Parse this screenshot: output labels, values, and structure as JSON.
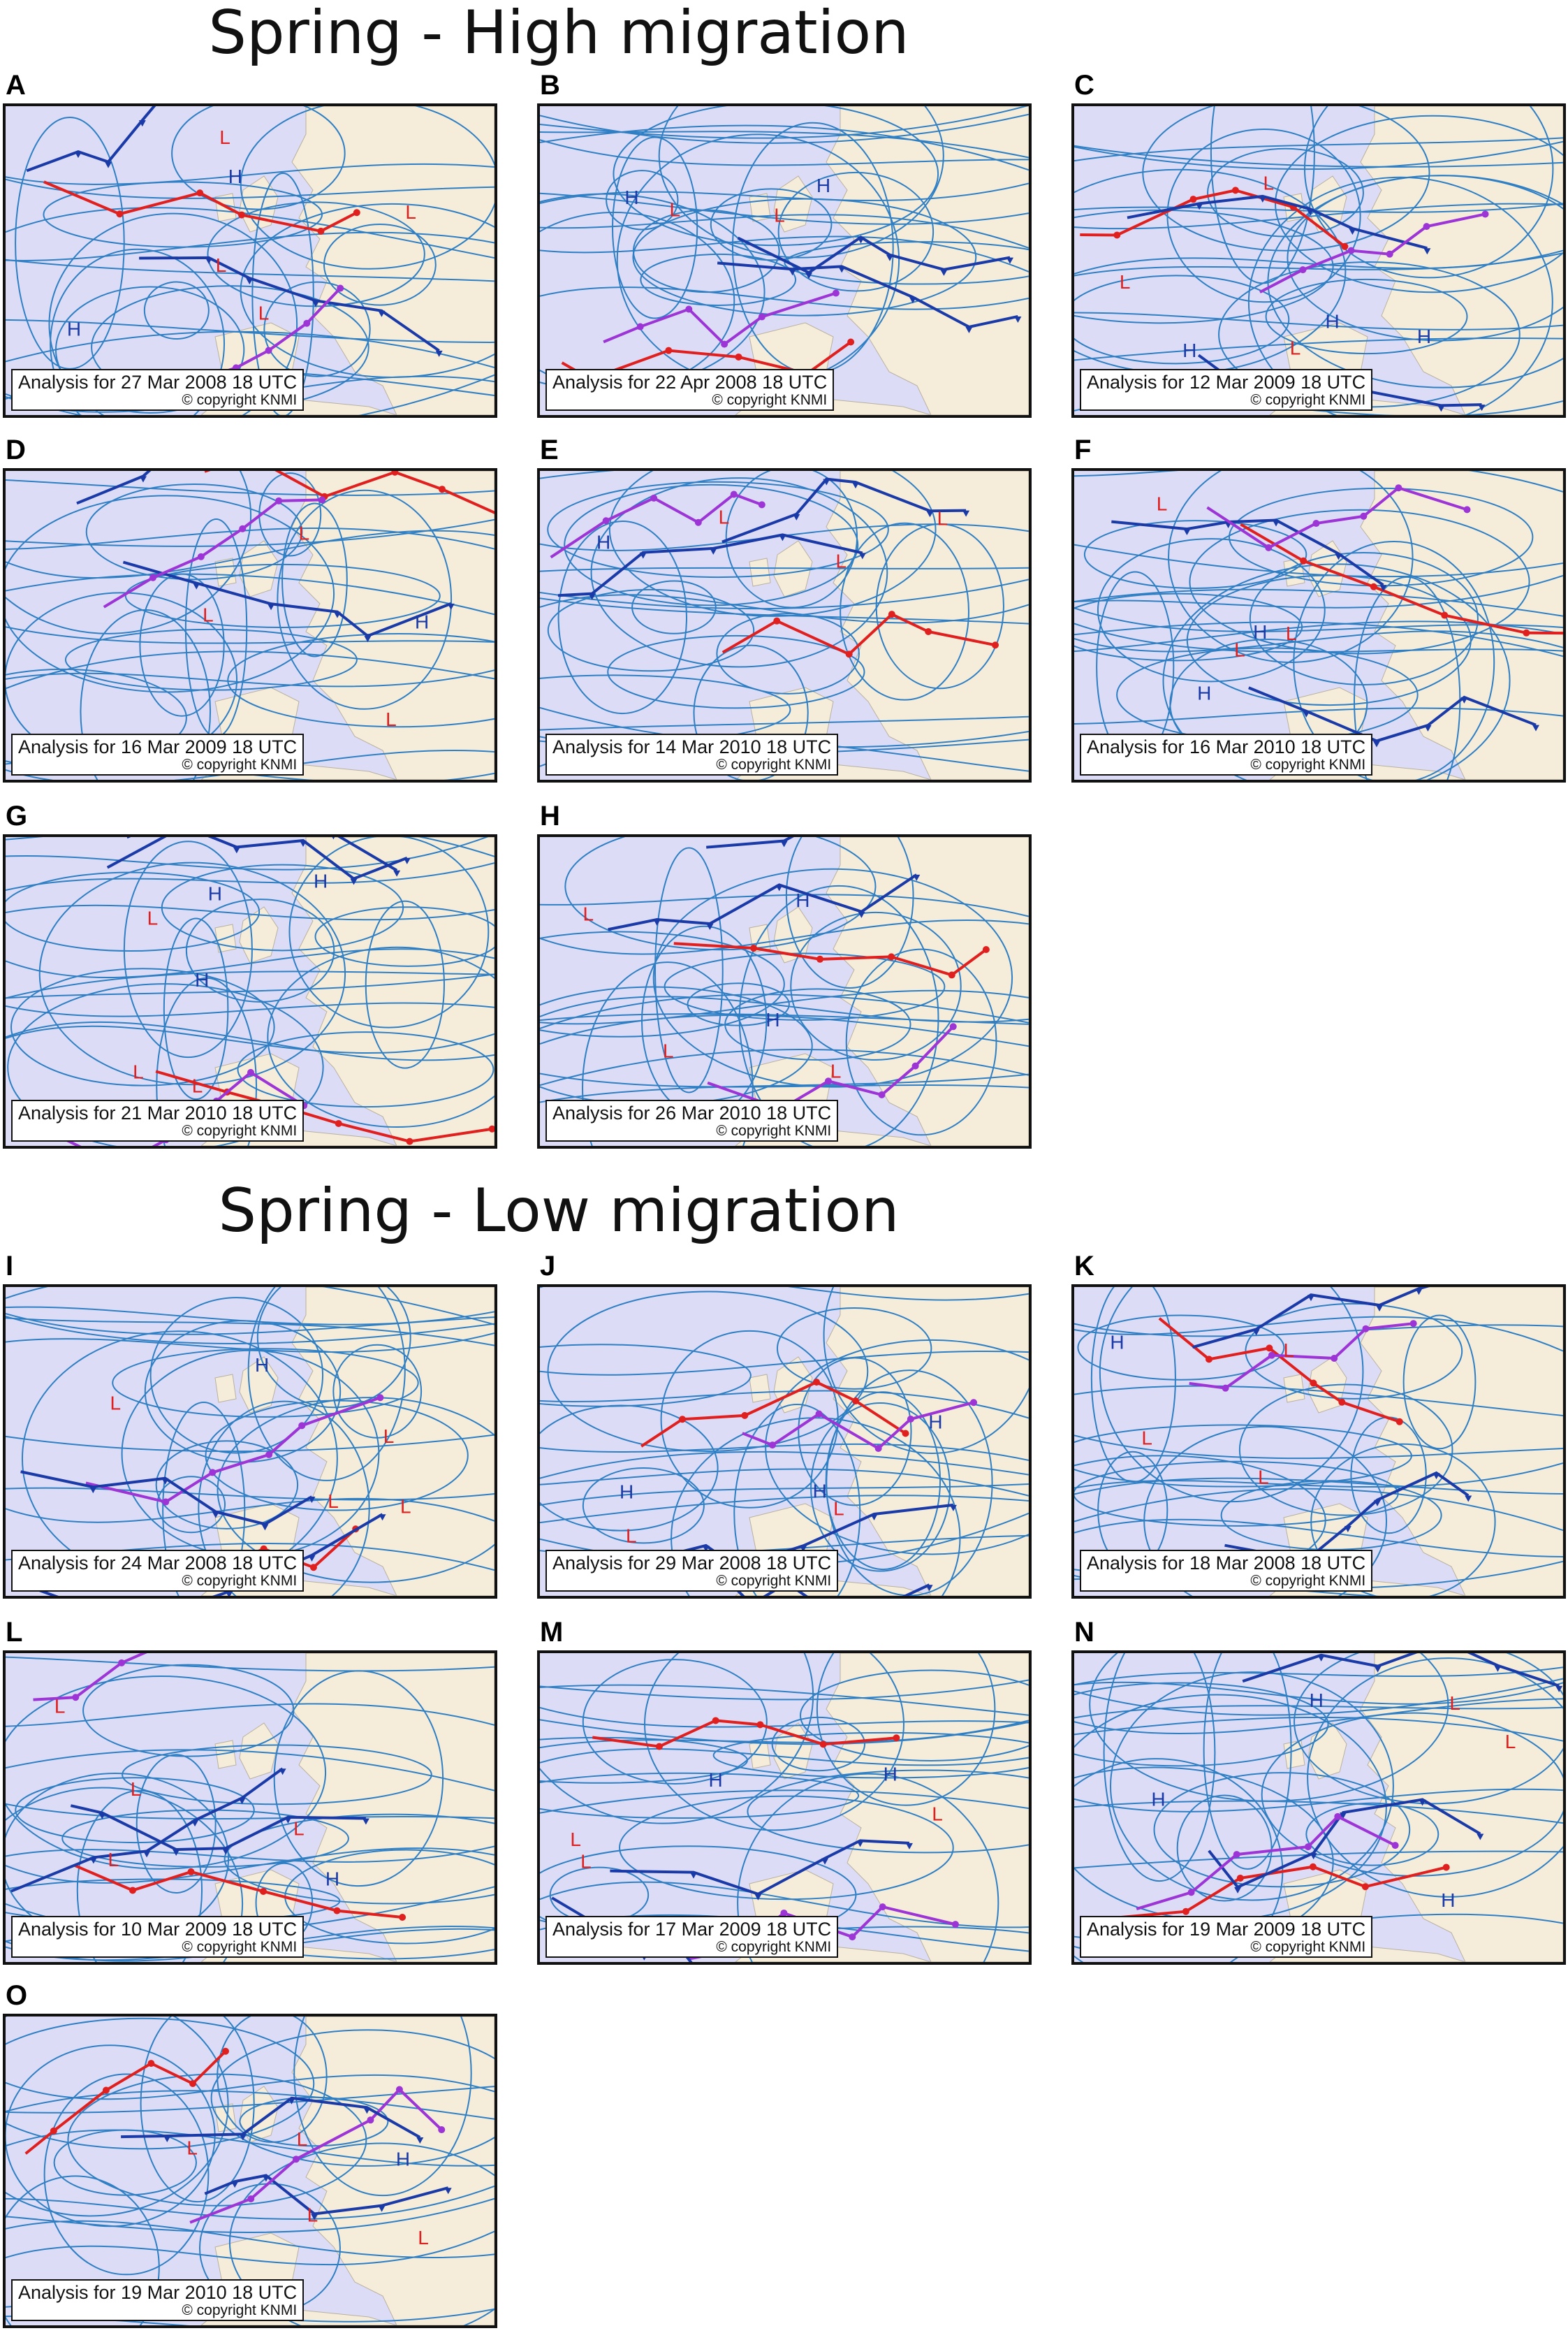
{
  "sections": {
    "high_title": "Spring - High  migration",
    "low_title": "Spring - Low migration"
  },
  "copyright": "© copyright KNMI",
  "colors": {
    "land": "#f5ecd9",
    "sea": "#dcdcf7",
    "isobar": "#2f7fc4",
    "warm": "#e0201f",
    "cold": "#1a3aa8",
    "occluded": "#9c34d6"
  },
  "panels": [
    {
      "letter": "A",
      "caption": "Analysis for 27 Mar 2008 18 UTC",
      "section": "high",
      "marks": [
        {
          "t": "L",
          "c": "red"
        },
        {
          "t": "L",
          "c": "red"
        },
        {
          "t": "L",
          "c": "red"
        },
        {
          "t": "L",
          "c": "red"
        },
        {
          "t": "H",
          "c": "blue"
        },
        {
          "t": "H",
          "c": "blue"
        }
      ]
    },
    {
      "letter": "B",
      "caption": "Analysis for 22 Apr 2008 18 UTC",
      "section": "high",
      "marks": [
        {
          "t": "L",
          "c": "red"
        },
        {
          "t": "L",
          "c": "red"
        },
        {
          "t": "H",
          "c": "blue"
        },
        {
          "t": "H",
          "c": "blue"
        }
      ]
    },
    {
      "letter": "C",
      "caption": "Analysis for 12 Mar 2009 18 UTC",
      "section": "high",
      "marks": [
        {
          "t": "L",
          "c": "red"
        },
        {
          "t": "L",
          "c": "red"
        },
        {
          "t": "L",
          "c": "red"
        },
        {
          "t": "H",
          "c": "blue"
        },
        {
          "t": "H",
          "c": "blue"
        },
        {
          "t": "H",
          "c": "blue"
        }
      ]
    },
    {
      "letter": "D",
      "caption": "Analysis for 16 Mar 2009 18 UTC",
      "section": "high",
      "marks": [
        {
          "t": "L",
          "c": "red"
        },
        {
          "t": "L",
          "c": "red"
        },
        {
          "t": "L",
          "c": "red"
        },
        {
          "t": "H",
          "c": "blue"
        }
      ]
    },
    {
      "letter": "E",
      "caption": "Analysis for 14 Mar 2010 18 UTC",
      "section": "high",
      "marks": [
        {
          "t": "L",
          "c": "red"
        },
        {
          "t": "L",
          "c": "red"
        },
        {
          "t": "L",
          "c": "red"
        },
        {
          "t": "H",
          "c": "blue"
        }
      ]
    },
    {
      "letter": "F",
      "caption": "Analysis for 16 Mar 2010 18 UTC",
      "section": "high",
      "marks": [
        {
          "t": "L",
          "c": "red"
        },
        {
          "t": "L",
          "c": "red"
        },
        {
          "t": "L",
          "c": "red"
        },
        {
          "t": "H",
          "c": "blue"
        },
        {
          "t": "H",
          "c": "blue"
        }
      ]
    },
    {
      "letter": "G",
      "caption": "Analysis for 21 Mar 2010 18 UTC",
      "section": "high",
      "marks": [
        {
          "t": "L",
          "c": "red"
        },
        {
          "t": "L",
          "c": "red"
        },
        {
          "t": "L",
          "c": "red"
        },
        {
          "t": "H",
          "c": "blue"
        },
        {
          "t": "H",
          "c": "blue"
        },
        {
          "t": "H",
          "c": "blue"
        }
      ]
    },
    {
      "letter": "H",
      "caption": "Analysis for 26 Mar 2010 18 UTC",
      "section": "high",
      "marks": [
        {
          "t": "L",
          "c": "red"
        },
        {
          "t": "L",
          "c": "red"
        },
        {
          "t": "L",
          "c": "red"
        },
        {
          "t": "H",
          "c": "blue"
        },
        {
          "t": "H",
          "c": "blue"
        }
      ]
    },
    {
      "letter": "I",
      "caption": "Analysis for 24 Mar 2008 18 UTC",
      "section": "low",
      "marks": [
        {
          "t": "L",
          "c": "red"
        },
        {
          "t": "L",
          "c": "red"
        },
        {
          "t": "L",
          "c": "red"
        },
        {
          "t": "L",
          "c": "red"
        },
        {
          "t": "H",
          "c": "blue"
        }
      ]
    },
    {
      "letter": "J",
      "caption": "Analysis for 29 Mar 2008 18 UTC",
      "section": "low",
      "marks": [
        {
          "t": "L",
          "c": "red"
        },
        {
          "t": "L",
          "c": "red"
        },
        {
          "t": "H",
          "c": "blue"
        },
        {
          "t": "H",
          "c": "blue"
        },
        {
          "t": "H",
          "c": "blue"
        }
      ]
    },
    {
      "letter": "K",
      "caption": "Analysis for 18 Mar 2008 18 UTC",
      "section": "low",
      "marks": [
        {
          "t": "L",
          "c": "red"
        },
        {
          "t": "L",
          "c": "red"
        },
        {
          "t": "L",
          "c": "red"
        },
        {
          "t": "H",
          "c": "blue"
        }
      ]
    },
    {
      "letter": "L",
      "caption": "Analysis for 10 Mar 2009 18 UTC",
      "section": "low",
      "marks": [
        {
          "t": "L",
          "c": "red"
        },
        {
          "t": "L",
          "c": "red"
        },
        {
          "t": "L",
          "c": "red"
        },
        {
          "t": "L",
          "c": "red"
        },
        {
          "t": "H",
          "c": "blue"
        }
      ]
    },
    {
      "letter": "M",
      "caption": "Analysis for 17 Mar 2009 18 UTC",
      "section": "low",
      "marks": [
        {
          "t": "L",
          "c": "red"
        },
        {
          "t": "L",
          "c": "red"
        },
        {
          "t": "L",
          "c": "red"
        },
        {
          "t": "H",
          "c": "blue"
        },
        {
          "t": "H",
          "c": "blue"
        }
      ]
    },
    {
      "letter": "N",
      "caption": "Analysis for 19 Mar 2009 18 UTC",
      "section": "low",
      "marks": [
        {
          "t": "L",
          "c": "red"
        },
        {
          "t": "L",
          "c": "red"
        },
        {
          "t": "H",
          "c": "blue"
        },
        {
          "t": "H",
          "c": "blue"
        },
        {
          "t": "H",
          "c": "blue"
        }
      ]
    },
    {
      "letter": "O",
      "caption": "Analysis for 19 Mar 2010 18 UTC",
      "section": "low",
      "marks": [
        {
          "t": "L",
          "c": "red"
        },
        {
          "t": "L",
          "c": "red"
        },
        {
          "t": "L",
          "c": "red"
        },
        {
          "t": "L",
          "c": "red"
        },
        {
          "t": "H",
          "c": "blue"
        }
      ]
    }
  ]
}
